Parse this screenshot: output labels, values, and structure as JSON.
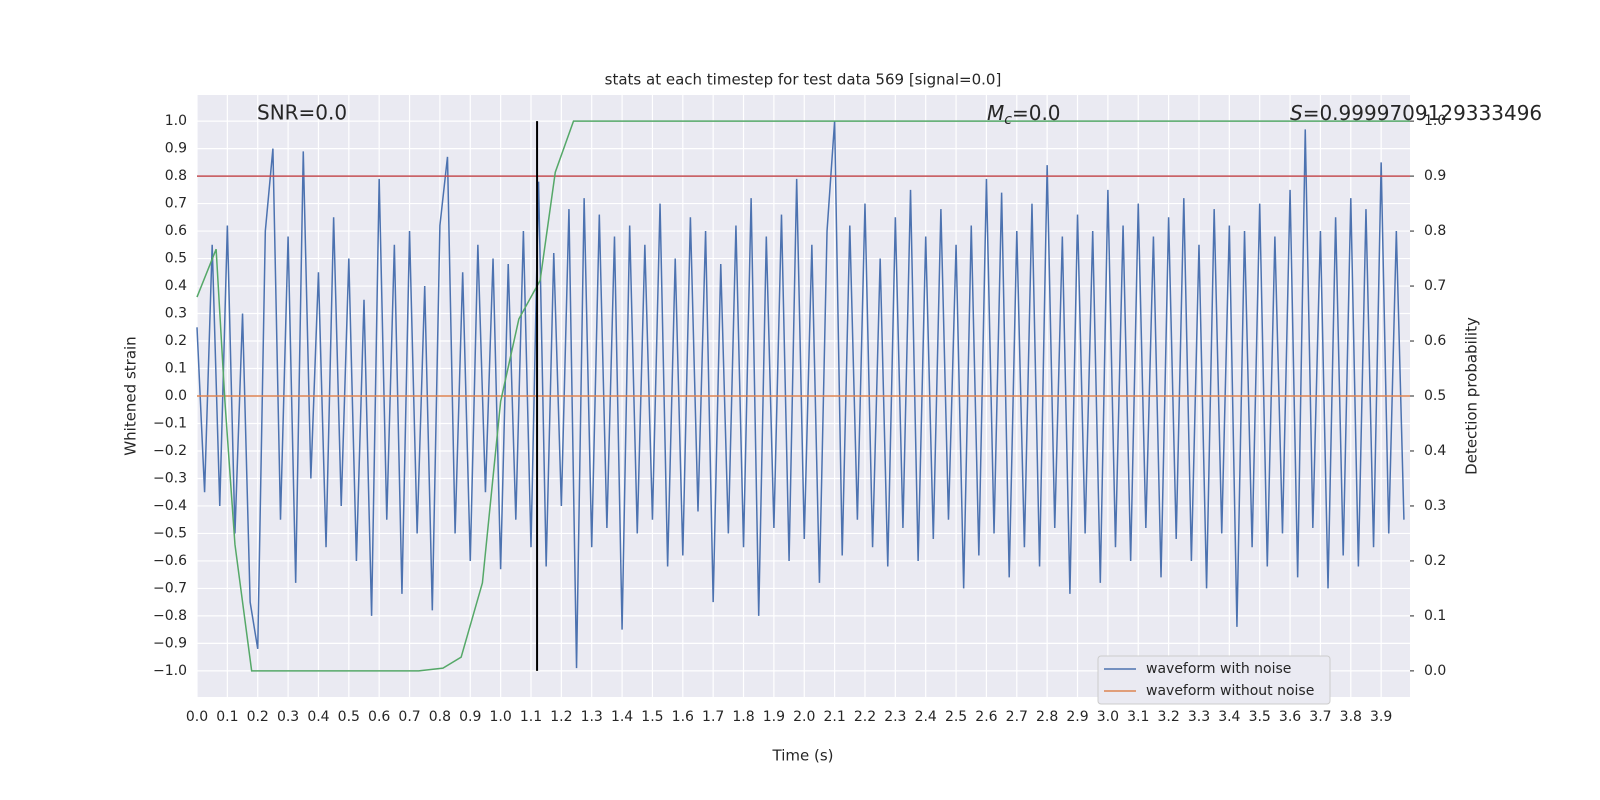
{
  "chart_data": {
    "type": "line",
    "title": "stats at each timestep for test data 569 [signal=0.0]",
    "xlabel": "Time (s)",
    "ylabel": "Whitened strain",
    "y2label": "Detection probability",
    "annotations": {
      "snr": "SNR=0.0",
      "mc_symbol": "M",
      "mc_sub": "c",
      "mc_text": "=0.0",
      "s_symbol": "S",
      "s_text": "=0.9999709129333496"
    },
    "xlim": [
      0,
      3.995
    ],
    "ylim": [
      -1.095,
      1.095
    ],
    "y2lim": [
      -0.0475,
      1.0475
    ],
    "xticks": [
      {
        "value": 0,
        "label": "0.0"
      },
      0.1,
      0.2,
      0.3,
      0.4,
      0.5,
      0.6,
      0.7,
      0.8,
      0.9,
      {
        "value": 1,
        "label": "1.0"
      },
      1.1,
      1.2,
      1.3,
      1.4,
      1.5,
      1.6,
      1.7,
      1.8,
      1.9,
      {
        "value": 2,
        "label": "2.0"
      },
      2.1,
      2.2,
      2.3,
      2.4,
      2.5,
      2.6,
      2.7,
      2.8,
      2.9,
      {
        "value": 3,
        "label": "3.0"
      },
      3.1,
      3.2,
      3.3,
      3.4,
      3.5,
      3.6,
      3.7,
      3.8,
      3.9
    ],
    "yticks": [
      {
        "value": -1,
        "label": "−1.0"
      },
      {
        "value": -0.9,
        "label": "−0.9"
      },
      {
        "value": -0.8,
        "label": "−0.8"
      },
      {
        "value": -0.7,
        "label": "−0.7"
      },
      {
        "value": -0.6,
        "label": "−0.6"
      },
      {
        "value": -0.5,
        "label": "−0.5"
      },
      {
        "value": -0.4,
        "label": "−0.4"
      },
      {
        "value": -0.3,
        "label": "−0.3"
      },
      {
        "value": -0.2,
        "label": "−0.2"
      },
      {
        "value": -0.1,
        "label": "−0.1"
      },
      {
        "value": 0,
        "label": "0.0"
      },
      0.1,
      0.2,
      0.3,
      0.4,
      0.5,
      0.6,
      0.7,
      0.8,
      0.9,
      {
        "value": 1,
        "label": "1.0"
      }
    ],
    "y2ticks": [
      {
        "value": 0,
        "label": "0.0"
      },
      0.1,
      0.2,
      0.3,
      0.4,
      0.5,
      0.6,
      0.7,
      0.8,
      0.9,
      {
        "value": 1,
        "label": "1.0"
      }
    ],
    "grid": true,
    "legend": "lower right",
    "series": [
      {
        "name": "waveform with noise",
        "color": "#4c72b0",
        "x": [
          0,
          0.025,
          0.05,
          0.075,
          0.1,
          0.125,
          0.15,
          0.175,
          0.2,
          0.225,
          0.25,
          0.275,
          0.3,
          0.325,
          0.35,
          0.375,
          0.4,
          0.425,
          0.45,
          0.475,
          0.5,
          0.525,
          0.55,
          0.575,
          0.6,
          0.625,
          0.65,
          0.675,
          0.7,
          0.725,
          0.75,
          0.775,
          0.8,
          0.825,
          0.85,
          0.875,
          0.9,
          0.925,
          0.95,
          0.975,
          1,
          1.025,
          1.05,
          1.075,
          1.1,
          1.125,
          1.15,
          1.175,
          1.2,
          1.225,
          1.25,
          1.275,
          1.3,
          1.325,
          1.35,
          1.375,
          1.4,
          1.425,
          1.45,
          1.475,
          1.5,
          1.525,
          1.55,
          1.575,
          1.6,
          1.625,
          1.65,
          1.675,
          1.7,
          1.725,
          1.75,
          1.775,
          1.8,
          1.825,
          1.85,
          1.875,
          1.9,
          1.925,
          1.95,
          1.975,
          2,
          2.025,
          2.05,
          2.075,
          2.1,
          2.125,
          2.15,
          2.175,
          2.2,
          2.225,
          2.25,
          2.275,
          2.3,
          2.325,
          2.35,
          2.375,
          2.4,
          2.425,
          2.45,
          2.475,
          2.5,
          2.525,
          2.55,
          2.575,
          2.6,
          2.625,
          2.65,
          2.675,
          2.7,
          2.725,
          2.75,
          2.775,
          2.8,
          2.825,
          2.85,
          2.875,
          2.9,
          2.925,
          2.95,
          2.975,
          3,
          3.025,
          3.05,
          3.075,
          3.1,
          3.125,
          3.15,
          3.175,
          3.2,
          3.225,
          3.25,
          3.275,
          3.3,
          3.325,
          3.35,
          3.375,
          3.4,
          3.425,
          3.45,
          3.475,
          3.5,
          3.525,
          3.55,
          3.575,
          3.6,
          3.625,
          3.65,
          3.675,
          3.7,
          3.725,
          3.75,
          3.775,
          3.8,
          3.825,
          3.85,
          3.875,
          3.9,
          3.925,
          3.95,
          3.975
        ],
        "values": [
          0.25,
          -0.35,
          0.55,
          -0.4,
          0.62,
          -0.5,
          0.3,
          -0.75,
          -0.92,
          0.6,
          0.9,
          -0.45,
          0.58,
          -0.68,
          0.89,
          -0.3,
          0.45,
          -0.55,
          0.65,
          -0.4,
          0.5,
          -0.6,
          0.35,
          -0.8,
          0.79,
          -0.45,
          0.55,
          -0.72,
          0.6,
          -0.5,
          0.4,
          -0.78,
          0.62,
          0.87,
          -0.5,
          0.45,
          -0.6,
          0.55,
          -0.35,
          0.5,
          -0.63,
          0.48,
          -0.45,
          0.6,
          -0.55,
          0.78,
          -0.62,
          0.52,
          -0.4,
          0.68,
          -0.99,
          0.72,
          -0.55,
          0.66,
          -0.48,
          0.58,
          -0.85,
          0.62,
          -0.5,
          0.55,
          -0.45,
          0.7,
          -0.62,
          0.5,
          -0.58,
          0.65,
          -0.42,
          0.6,
          -0.75,
          0.48,
          -0.5,
          0.62,
          -0.55,
          0.72,
          -0.8,
          0.58,
          -0.48,
          0.66,
          -0.6,
          0.79,
          -0.52,
          0.55,
          -0.68,
          0.6,
          1.0,
          -0.58,
          0.62,
          -0.45,
          0.7,
          -0.55,
          0.5,
          -0.62,
          0.65,
          -0.48,
          0.75,
          -0.6,
          0.58,
          -0.52,
          0.68,
          -0.45,
          0.55,
          -0.7,
          0.62,
          -0.58,
          0.79,
          -0.5,
          0.74,
          -0.66,
          0.6,
          -0.55,
          0.7,
          -0.62,
          0.84,
          -0.48,
          0.58,
          -0.72,
          0.66,
          -0.5,
          0.6,
          -0.68,
          0.75,
          -0.55,
          0.62,
          -0.6,
          0.7,
          -0.48,
          0.58,
          -0.66,
          0.65,
          -0.52,
          0.72,
          -0.6,
          0.55,
          -0.7,
          0.68,
          -0.5,
          0.62,
          -0.84,
          0.6,
          -0.55,
          0.7,
          -0.62,
          0.58,
          -0.5,
          0.75,
          -0.66,
          0.97,
          -0.48,
          0.6,
          -0.7,
          0.65,
          -0.58,
          0.72,
          -0.62,
          0.68,
          -0.55,
          0.85,
          -0.5,
          0.6,
          -0.45
        ]
      },
      {
        "name": "waveform without noise",
        "color": "#dd8452",
        "x": [
          0,
          3.995
        ],
        "values": [
          0,
          0
        ]
      }
    ],
    "probability": {
      "color": "#55a868",
      "axis": "y2",
      "x": [
        0,
        0.063,
        0.092,
        0.125,
        0.18,
        0.24,
        0.73,
        0.81,
        0.87,
        0.94,
        1.0,
        1.06,
        1.13,
        1.18,
        1.24,
        1.31,
        3.995
      ],
      "values": [
        0.68,
        0.767,
        0.49,
        0.23,
        0.0,
        0.0,
        0.0,
        0.005,
        0.025,
        0.16,
        0.49,
        0.64,
        0.71,
        0.907,
        1.0,
        1.0,
        1.0
      ]
    },
    "hline": {
      "y": 0.8,
      "color": "#c44e52"
    },
    "vline": {
      "x": 1.12,
      "ymin": -1,
      "ymax": 1,
      "color": "#000000"
    }
  }
}
